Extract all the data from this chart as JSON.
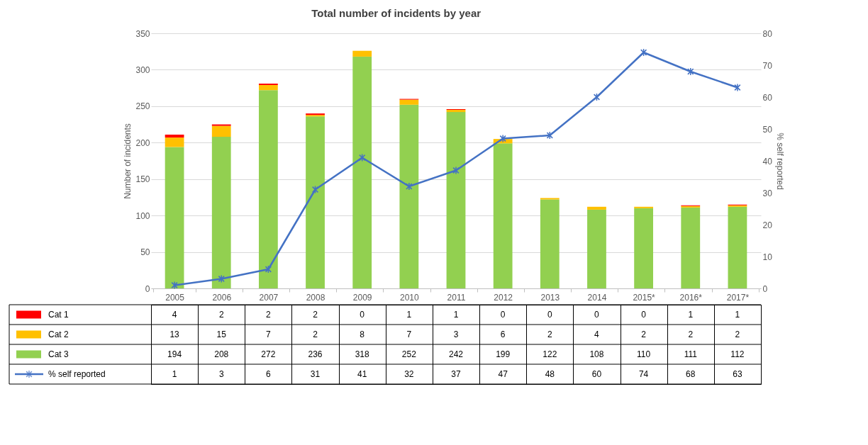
{
  "chart_data": {
    "type": "bar",
    "title": "Total number of incidents by  year",
    "ylabel": "Number of incidents",
    "y2label": "% self reported",
    "categories": [
      "2005",
      "2006",
      "2007",
      "2008",
      "2009",
      "2010",
      "2011",
      "2012",
      "2013",
      "2014",
      "2015*",
      "2016*",
      "2017*"
    ],
    "stacked": true,
    "data_labels": true,
    "legend": "bottom",
    "grid": "y",
    "marker": "cross",
    "ylim": [
      0,
      350
    ],
    "yticks": [
      0,
      50,
      100,
      150,
      200,
      250,
      300,
      350
    ],
    "y2lim": [
      0,
      80
    ],
    "y2ticks": [
      0,
      10,
      20,
      30,
      40,
      50,
      60,
      70,
      80
    ],
    "series": [
      {
        "name": "Cat 3",
        "color": "#92d050",
        "values": [
          194,
          208,
          272,
          236,
          318,
          252,
          242,
          199,
          122,
          108,
          110,
          111,
          112
        ]
      },
      {
        "name": "Cat 2",
        "color": "#ffc000",
        "values": [
          13,
          15,
          7,
          2,
          8,
          7,
          3,
          6,
          2,
          4,
          2,
          2,
          2
        ]
      },
      {
        "name": "Cat 1",
        "color": "#ff0000",
        "values": [
          4,
          2,
          2,
          2,
          0,
          1,
          1,
          0,
          0,
          0,
          0,
          1,
          1
        ]
      },
      {
        "name": "% self reported",
        "type": "line",
        "axis": "y2",
        "color": "#4472c4",
        "values": [
          1,
          3,
          6,
          31,
          41,
          32,
          37,
          47,
          48,
          60,
          74,
          68,
          63
        ]
      }
    ]
  }
}
